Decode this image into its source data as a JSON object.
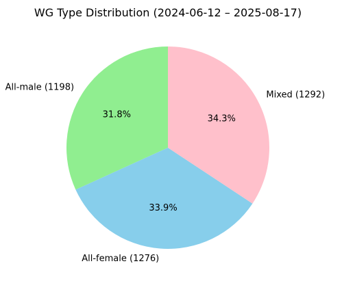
{
  "chart_data": {
    "type": "pie",
    "title": "WG Type Distribution (2024-06-12 – 2025-08-17)",
    "slices": [
      {
        "label": "All-male (1198)",
        "value": 1198,
        "percent": "31.8%",
        "color": "#90ee90"
      },
      {
        "label": "All-female (1276)",
        "value": 1276,
        "percent": "33.9%",
        "color": "#87ceeb"
      },
      {
        "label": "Mixed (1292)",
        "value": 1292,
        "percent": "34.3%",
        "color": "#ffc0cb"
      }
    ],
    "start_angle_deg": 90,
    "direction": "counterclockwise"
  }
}
